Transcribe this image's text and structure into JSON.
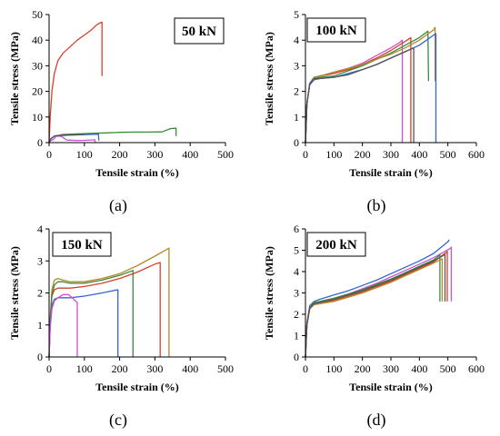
{
  "figure": {
    "captions": [
      "(a)",
      "(b)",
      "(c)",
      "(d)"
    ]
  },
  "chart_data": [
    {
      "type": "line",
      "tag": "50 kN",
      "xlabel": "Tensile strain (%)",
      "ylabel": "Tensile stress (MPa)",
      "xlim": [
        0,
        500
      ],
      "ylim": [
        0,
        50
      ],
      "xticks": [
        0,
        100,
        200,
        300,
        400,
        500
      ],
      "yticks": [
        0,
        10,
        20,
        30,
        40,
        50
      ],
      "series": [
        {
          "color": "#d9402b",
          "x": [
            0,
            3,
            8,
            15,
            25,
            40,
            60,
            80,
            100,
            120,
            135,
            148,
            150,
            150
          ],
          "y": [
            0,
            10,
            20,
            27,
            32,
            35,
            37.5,
            40,
            42,
            44,
            46,
            47,
            47,
            26
          ]
        },
        {
          "color": "#3a8a3a",
          "x": [
            0,
            5,
            15,
            40,
            80,
            120,
            160,
            200,
            240,
            280,
            320,
            345,
            358,
            360,
            360
          ],
          "y": [
            0,
            1.5,
            2.5,
            3.2,
            3.4,
            3.6,
            3.8,
            4,
            4.1,
            4.1,
            4.2,
            5.5,
            5.6,
            5.6,
            2.5
          ]
        },
        {
          "color": "#3366cc",
          "x": [
            0,
            5,
            15,
            40,
            80,
            120,
            140,
            141
          ],
          "y": [
            0,
            1.5,
            2.5,
            2.8,
            3,
            3.2,
            3.3,
            0.8
          ]
        },
        {
          "color": "#d14fd1",
          "x": [
            0,
            5,
            12,
            20,
            35,
            50,
            80,
            100,
            130,
            130
          ],
          "y": [
            0,
            0.8,
            1.2,
            2.5,
            2.4,
            1,
            0.8,
            0.9,
            1.1,
            0
          ]
        },
        {
          "color": "#555555",
          "x": [
            0,
            5,
            15,
            40,
            80,
            100
          ],
          "y": [
            0,
            1.5,
            2.6,
            3,
            3.1,
            3.1
          ]
        }
      ]
    },
    {
      "type": "line",
      "tag": "100 kN",
      "xlabel": "Tensile strain (%)",
      "ylabel": "Tensile stress (MPa)",
      "xlim": [
        0,
        600
      ],
      "ylim": [
        0,
        5
      ],
      "xticks": [
        0,
        100,
        200,
        300,
        400,
        500,
        600
      ],
      "yticks": [
        0,
        1,
        2,
        3,
        4,
        5
      ],
      "series": [
        {
          "color": "#d14fd1",
          "x": [
            0,
            5,
            15,
            30,
            50,
            100,
            150,
            200,
            250,
            300,
            330,
            340,
            340
          ],
          "y": [
            0,
            1.5,
            2.3,
            2.55,
            2.6,
            2.7,
            2.9,
            3.1,
            3.4,
            3.7,
            3.9,
            4,
            0
          ]
        },
        {
          "color": "#d9402b",
          "x": [
            0,
            5,
            15,
            30,
            50,
            100,
            150,
            200,
            250,
            300,
            350,
            370,
            370
          ],
          "y": [
            0,
            1.5,
            2.3,
            2.55,
            2.6,
            2.7,
            2.85,
            3.05,
            3.3,
            3.6,
            3.95,
            4.1,
            0
          ]
        },
        {
          "color": "#3a8a3a",
          "x": [
            0,
            5,
            15,
            30,
            50,
            100,
            150,
            200,
            250,
            300,
            350,
            400,
            430,
            432
          ],
          "y": [
            0,
            1.5,
            2.3,
            2.5,
            2.55,
            2.6,
            2.8,
            3,
            3.25,
            3.5,
            3.8,
            4.1,
            4.35,
            2.4
          ]
        },
        {
          "color": "#b5892a",
          "x": [
            0,
            5,
            15,
            30,
            50,
            100,
            150,
            200,
            250,
            300,
            350,
            400,
            450,
            455,
            455
          ],
          "y": [
            0,
            1.5,
            2.3,
            2.55,
            2.6,
            2.75,
            2.9,
            3.05,
            3.25,
            3.45,
            3.7,
            4,
            4.4,
            4.5,
            2.4
          ]
        },
        {
          "color": "#3366cc",
          "x": [
            0,
            5,
            15,
            30,
            50,
            100,
            150,
            200,
            250,
            300,
            350,
            400,
            450,
            458,
            458
          ],
          "y": [
            0,
            1.5,
            2.25,
            2.45,
            2.5,
            2.55,
            2.7,
            2.85,
            3.05,
            3.3,
            3.55,
            3.8,
            4.2,
            4.25,
            0
          ]
        },
        {
          "color": "#555555",
          "x": [
            0,
            5,
            15,
            30,
            50,
            100,
            150,
            200,
            250,
            300,
            350,
            380,
            380
          ],
          "y": [
            0,
            1.5,
            2.3,
            2.5,
            2.5,
            2.55,
            2.65,
            2.85,
            3.05,
            3.3,
            3.55,
            3.7,
            0
          ]
        }
      ]
    },
    {
      "type": "line",
      "tag": "150 kN",
      "xlabel": "Tensile strain (%)",
      "ylabel": "Tensile stress (MPa)",
      "xlim": [
        0,
        500
      ],
      "ylim": [
        0,
        4
      ],
      "xticks": [
        0,
        100,
        200,
        300,
        400,
        500
      ],
      "yticks": [
        0,
        1,
        2,
        3,
        4
      ],
      "series": [
        {
          "color": "#b5892a",
          "x": [
            0,
            3,
            8,
            15,
            25,
            40,
            60,
            100,
            150,
            200,
            250,
            300,
            340,
            340
          ],
          "y": [
            0,
            1.2,
            2.1,
            2.4,
            2.45,
            2.4,
            2.35,
            2.35,
            2.45,
            2.6,
            2.85,
            3.15,
            3.4,
            0
          ]
        },
        {
          "color": "#d9402b",
          "x": [
            0,
            3,
            8,
            15,
            25,
            40,
            60,
            100,
            150,
            200,
            250,
            300,
            315,
            315
          ],
          "y": [
            0,
            1.1,
            1.9,
            2.1,
            2.15,
            2.15,
            2.15,
            2.2,
            2.3,
            2.45,
            2.65,
            2.9,
            2.95,
            0
          ]
        },
        {
          "color": "#3a8a3a",
          "x": [
            0,
            3,
            8,
            15,
            25,
            40,
            60,
            100,
            150,
            200,
            238,
            238
          ],
          "y": [
            0,
            1.1,
            1.95,
            2.25,
            2.35,
            2.35,
            2.3,
            2.3,
            2.4,
            2.55,
            2.7,
            0
          ]
        },
        {
          "color": "#3366cc",
          "x": [
            0,
            3,
            8,
            15,
            25,
            40,
            60,
            100,
            150,
            195,
            195
          ],
          "y": [
            0,
            1,
            1.6,
            1.8,
            1.85,
            1.85,
            1.85,
            1.9,
            2,
            2.1,
            0
          ]
        },
        {
          "color": "#d14fd1",
          "x": [
            0,
            3,
            8,
            15,
            25,
            40,
            55,
            70,
            80,
            80
          ],
          "y": [
            0,
            0.9,
            1.5,
            1.75,
            1.85,
            1.95,
            1.95,
            1.8,
            1.7,
            0
          ]
        }
      ]
    },
    {
      "type": "line",
      "tag": "200 kN",
      "xlabel": "Tensile strain (%)",
      "ylabel": "Tensile stress (MPa)",
      "xlim": [
        0,
        600
      ],
      "ylim": [
        0,
        6
      ],
      "xticks": [
        0,
        100,
        200,
        300,
        400,
        500,
        600
      ],
      "yticks": [
        0,
        1,
        2,
        3,
        4,
        5,
        6
      ],
      "series": [
        {
          "color": "#3366cc",
          "x": [
            0,
            5,
            15,
            30,
            50,
            100,
            150,
            200,
            250,
            300,
            350,
            400,
            450,
            500,
            505
          ],
          "y": [
            0,
            1.6,
            2.4,
            2.6,
            2.7,
            2.9,
            3.1,
            3.35,
            3.6,
            3.9,
            4.2,
            4.5,
            4.85,
            5.4,
            5.5
          ]
        },
        {
          "color": "#d14fd1",
          "x": [
            0,
            5,
            15,
            30,
            50,
            100,
            150,
            200,
            250,
            300,
            350,
            400,
            450,
            510,
            512,
            512
          ],
          "y": [
            0,
            1.5,
            2.3,
            2.5,
            2.6,
            2.75,
            2.95,
            3.2,
            3.45,
            3.75,
            4.05,
            4.35,
            4.65,
            5.1,
            5.15,
            2.6
          ]
        },
        {
          "color": "#3a8a3a",
          "x": [
            0,
            5,
            15,
            30,
            50,
            100,
            150,
            200,
            250,
            300,
            350,
            400,
            450,
            470,
            472,
            472
          ],
          "y": [
            0,
            1.5,
            2.3,
            2.55,
            2.6,
            2.75,
            2.95,
            3.15,
            3.4,
            3.65,
            3.95,
            4.25,
            4.55,
            4.75,
            4.8,
            2.6
          ]
        },
        {
          "color": "#d9402b",
          "x": [
            0,
            5,
            15,
            30,
            50,
            100,
            150,
            200,
            250,
            300,
            350,
            400,
            450,
            495,
            498,
            498
          ],
          "y": [
            0,
            1.5,
            2.25,
            2.45,
            2.5,
            2.65,
            2.85,
            3.05,
            3.3,
            3.55,
            3.85,
            4.15,
            4.45,
            4.9,
            4.95,
            2.6
          ]
        },
        {
          "color": "#b5892a",
          "x": [
            0,
            5,
            15,
            30,
            50,
            100,
            150,
            200,
            250,
            300,
            350,
            400,
            450,
            480,
            480
          ],
          "y": [
            0,
            1.5,
            2.25,
            2.45,
            2.5,
            2.6,
            2.8,
            3,
            3.25,
            3.5,
            3.8,
            4.1,
            4.4,
            4.6,
            2.6
          ]
        },
        {
          "color": "#555555",
          "x": [
            0,
            5,
            15,
            30,
            50,
            100,
            150,
            200,
            250,
            300,
            350,
            400,
            450,
            490,
            490
          ],
          "y": [
            0,
            1.5,
            2.3,
            2.5,
            2.55,
            2.7,
            2.9,
            3.1,
            3.35,
            3.6,
            3.9,
            4.2,
            4.5,
            4.8,
            2.6
          ]
        }
      ]
    }
  ]
}
